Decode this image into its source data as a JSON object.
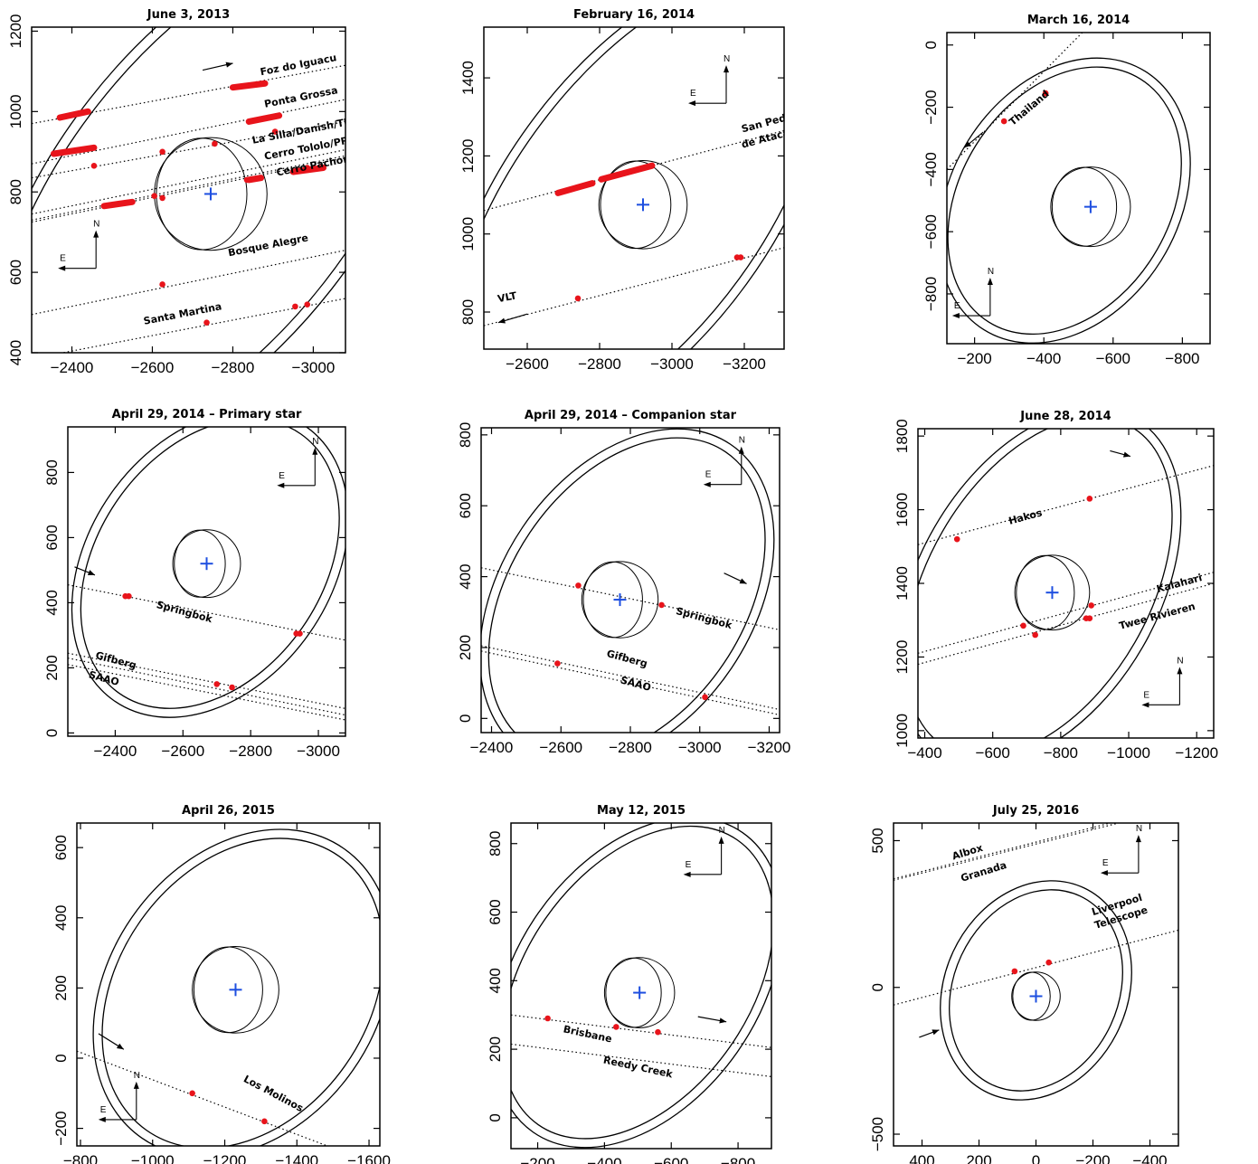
{
  "figure": {
    "colors": {
      "axis": "#000000",
      "chord": "#000000",
      "detection": "#e8141b",
      "center": "#1e4fe0"
    },
    "compass": {
      "north": "N",
      "east": "E"
    }
  },
  "chart_data": [
    {
      "type": "scatter",
      "title": "June 3, 2013",
      "xlim": [
        -2300,
        -3080
      ],
      "ylim": [
        400,
        1210
      ],
      "xticks": [
        -2400,
        -2600,
        -2800,
        -3000
      ],
      "yticks": [
        400,
        600,
        800,
        1000,
        1200
      ],
      "center": {
        "x": -2745,
        "y": 795
      },
      "rings": {
        "cx": -2745,
        "cy": 795,
        "rx": 370,
        "ry": 750,
        "angle": 38,
        "gap": 11
      },
      "body": {
        "r": 140,
        "crescent_dx": 50
      },
      "chords": [
        {
          "name": "Foz do Iguacu",
          "label_at": [
            -2870,
            1090
          ],
          "label_angle": -11,
          "x1": -2300,
          "y1": 970,
          "x2": -3080,
          "y2": 1115
        },
        {
          "name": "Ponta Grossa",
          "label_at": [
            -2880,
            1010
          ],
          "label_angle": -11,
          "x1": -2300,
          "y1": 870,
          "x2": -3080,
          "y2": 1030
        },
        {
          "name": "La Silla/Danish/TRAPPIST",
          "label_at": [
            -2850,
            920
          ],
          "label_angle": -11,
          "x1": -2300,
          "y1": 835,
          "x2": -3080,
          "y2": 975
        },
        {
          "name": "Cerro Tololo/PROMPT",
          "label_at": [
            -2880,
            880
          ],
          "label_angle": -11,
          "x1": -2300,
          "y1": 745,
          "x2": -3080,
          "y2": 905
        },
        {
          "name": "Cerro Pachon / SOAR",
          "label_at": [
            -2910,
            840
          ],
          "label_angle": -11,
          "x1": -2300,
          "y1": 730,
          "x2": -3080,
          "y2": 890
        },
        {
          "name": "",
          "x1": -2300,
          "y1": 725,
          "x2": -3080,
          "y2": 885
        },
        {
          "name": "Bosque Alegre",
          "label_at": [
            -2790,
            640
          ],
          "label_angle": -11,
          "x1": -2300,
          "y1": 495,
          "x2": -3080,
          "y2": 655
        },
        {
          "name": "Santa Martina",
          "label_at": [
            -2580,
            470
          ],
          "label_angle": -11,
          "x1": -2300,
          "y1": 385,
          "x2": -3080,
          "y2": 535
        }
      ],
      "segments": [
        [
          -2370,
          985,
          -2440,
          1000
        ],
        [
          -2355,
          895,
          -2455,
          910
        ],
        [
          -2480,
          765,
          -2550,
          775
        ],
        [
          -2800,
          1060,
          -2880,
          1070
        ],
        [
          -2840,
          975,
          -2915,
          990
        ],
        [
          -2840,
          830,
          -2870,
          835
        ],
        [
          -2950,
          850,
          -3025,
          860
        ]
      ],
      "points": [
        [
          -2455,
          865
        ],
        [
          -2625,
          900
        ],
        [
          -2755,
          920
        ],
        [
          -2605,
          790
        ],
        [
          -2625,
          785
        ],
        [
          -2835,
          830
        ],
        [
          -2905,
          950
        ],
        [
          -2625,
          570
        ],
        [
          -2735,
          475
        ],
        [
          -2955,
          515
        ],
        [
          -2985,
          520
        ],
        [
          -2985,
          860
        ]
      ],
      "compass_at": [
        -2460,
        610
      ],
      "motion": {
        "x1": -2800,
        "y1": 1120,
        "x2": -2725,
        "y2": 1103
      }
    },
    {
      "type": "scatter",
      "title": "February 16, 2014",
      "xlim": [
        -2480,
        -3310
      ],
      "ylim": [
        705,
        1530
      ],
      "xticks": [
        -2600,
        -2800,
        -3000,
        -3200
      ],
      "yticks": [
        800,
        1000,
        1200,
        1400
      ],
      "center": {
        "x": -2920,
        "y": 1075
      },
      "rings": {
        "cx": -2905,
        "cy": 1075,
        "rx": 360,
        "ry": 685,
        "angle": 36,
        "gap": 10
      },
      "body": {
        "r": 122,
        "crescent_dx": 45
      },
      "chords": [
        {
          "name": "San Pedro",
          "label_at": [
            -3195,
            1260
          ],
          "label_angle": -15,
          "x1": -2480,
          "y1": 1060,
          "x2": -3310,
          "y2": 1265
        },
        {
          "name": "de Atacama",
          "label_at": [
            -3195,
            1220
          ],
          "label_angle": -15,
          "x1": 0,
          "y1": 0,
          "x2": 0,
          "y2": 0
        },
        {
          "name": "VLT",
          "label_at": [
            -2520,
            825
          ],
          "label_angle": -11,
          "x1": -2480,
          "y1": 765,
          "x2": -3310,
          "y2": 965
        }
      ],
      "segments": [
        [
          -2685,
          1105,
          -2780,
          1130
        ],
        [
          -2805,
          1140,
          -2945,
          1175
        ]
      ],
      "points": [
        [
          -2740,
          835
        ],
        [
          -3190,
          940
        ],
        [
          -3180,
          940
        ]
      ],
      "compass_at": [
        -3150,
        1335
      ],
      "motion": {
        "x1": -2520,
        "y1": 773,
        "x2": -2600,
        "y2": 795
      }
    },
    {
      "type": "scatter",
      "title": "March 16, 2014",
      "xlim": [
        -120,
        -880
      ],
      "ylim": [
        -960,
        40
      ],
      "xticks": [
        -200,
        -400,
        -600,
        -800
      ],
      "yticks": [
        0,
        -200,
        -400,
        -600,
        -800
      ],
      "center": {
        "x": -535,
        "y": -520
      },
      "rings": {
        "cx": -460,
        "cy": -500,
        "rx": 315,
        "ry": 475,
        "angle": 32,
        "gap": 10
      },
      "body": {
        "r": 115,
        "crescent_dx": 40
      },
      "chords": [
        {
          "name": "Thailand",
          "label_at": [
            -310,
            -260
          ],
          "label_angle": -40,
          "x1": -120,
          "y1": -400,
          "x2": -520,
          "y2": 50
        }
      ],
      "segments": [],
      "points": [
        [
          -285,
          -245
        ],
        [
          -405,
          -155
        ]
      ],
      "compass_at": [
        -245,
        -870
      ],
      "motion": {
        "x1": -170,
        "y1": -330,
        "x2": -225,
        "y2": -280
      }
    },
    {
      "type": "scatter",
      "title": "April 29, 2014 – Primary star",
      "xlim": [
        -2260,
        -3080
      ],
      "ylim": [
        -10,
        940
      ],
      "xticks": [
        -2400,
        -2600,
        -2800,
        -3000
      ],
      "yticks": [
        0,
        200,
        400,
        600,
        800
      ],
      "center": {
        "x": -2670,
        "y": 520
      },
      "rings": {
        "cx": -2680,
        "cy": 520,
        "rx": 345,
        "ry": 500,
        "angle": 35,
        "gap": 10
      },
      "body": {
        "r": 100,
        "crescent_dx": 45
      },
      "chords": [
        {
          "name": "Springbok",
          "label_at": [
            -2520,
            385
          ],
          "label_angle": 15,
          "x1": -2260,
          "y1": 455,
          "x2": -3080,
          "y2": 285
        },
        {
          "name": "Gifberg",
          "label_at": [
            -2340,
            230
          ],
          "label_angle": 15,
          "x1": -2260,
          "y1": 245,
          "x2": -3080,
          "y2": 75
        },
        {
          "name": "SAAO",
          "label_at": [
            -2320,
            170
          ],
          "label_angle": 15,
          "x1": -2260,
          "y1": 230,
          "x2": -3080,
          "y2": 55
        },
        {
          "name": "",
          "x1": -2260,
          "y1": 210,
          "x2": -3080,
          "y2": 40
        }
      ],
      "segments": [],
      "points": [
        [
          -2440,
          420
        ],
        [
          -2430,
          420
        ],
        [
          -2945,
          305
        ],
        [
          -2935,
          305
        ],
        [
          -2700,
          150
        ],
        [
          -2745,
          140
        ]
      ],
      "compass_at": [
        -2990,
        760
      ],
      "motion": {
        "x1": -2340,
        "y1": 485,
        "x2": -2280,
        "y2": 510
      }
    },
    {
      "type": "scatter",
      "title": "April 29, 2014 – Companion star",
      "xlim": [
        -2370,
        -3230
      ],
      "ylim": [
        -40,
        820
      ],
      "xticks": [
        -2400,
        -2600,
        -2800,
        -3000,
        -3200
      ],
      "yticks": [
        0,
        200,
        400,
        600,
        800
      ],
      "center": {
        "x": -2770,
        "y": 335
      },
      "rings": {
        "cx": -2790,
        "cy": 340,
        "rx": 350,
        "ry": 510,
        "angle": 34,
        "gap": 10
      },
      "body": {
        "r": 110,
        "crescent_dx": 45
      },
      "chords": [
        {
          "name": "Springbok",
          "label_at": [
            -2930,
            295
          ],
          "label_angle": 15,
          "x1": -2370,
          "y1": 425,
          "x2": -3230,
          "y2": 250
        },
        {
          "name": "Gifberg",
          "label_at": [
            -2730,
            175
          ],
          "label_angle": 15,
          "x1": -2370,
          "y1": 205,
          "x2": -3230,
          "y2": 25
        },
        {
          "name": "SAAO",
          "label_at": [
            -2770,
            100
          ],
          "label_angle": 15,
          "x1": -2370,
          "y1": 190,
          "x2": -3230,
          "y2": 10
        }
      ],
      "segments": [],
      "points": [
        [
          -2650,
          375
        ],
        [
          -2890,
          320
        ],
        [
          -2590,
          155
        ],
        [
          -3015,
          60
        ]
      ],
      "compass_at": [
        -3120,
        660
      ],
      "motion": {
        "x1": -3135,
        "y1": 380,
        "x2": -3070,
        "y2": 410
      }
    },
    {
      "type": "scatter",
      "title": "June 28, 2014",
      "xlim": [
        -380,
        -1250
      ],
      "ylim": [
        980,
        1820
      ],
      "xticks": [
        -400,
        -600,
        -800,
        -1000,
        -1200
      ],
      "yticks": [
        1000,
        1200,
        1400,
        1600,
        1800
      ],
      "center": {
        "x": -775,
        "y": 1375
      },
      "rings": {
        "cx": -735,
        "cy": 1390,
        "rx": 340,
        "ry": 515,
        "angle": 30,
        "gap": 10
      },
      "body": {
        "r": 110,
        "crescent_dx": 45
      },
      "chords": [
        {
          "name": "Hakos",
          "label_at": [
            -650,
            1560
          ],
          "label_angle": -15,
          "x1": -380,
          "y1": 1505,
          "x2": -1250,
          "y2": 1720
        },
        {
          "name": "Kalahari",
          "label_at": [
            -1085,
            1375
          ],
          "label_angle": -15,
          "x1": -380,
          "y1": 1210,
          "x2": -1250,
          "y2": 1430
        },
        {
          "name": "Twee  Rivieren",
          "label_at": [
            -975,
            1275
          ],
          "label_angle": -15,
          "x1": -380,
          "y1": 1180,
          "x2": -1250,
          "y2": 1400
        }
      ],
      "segments": [],
      "points": [
        [
          -495,
          1520
        ],
        [
          -885,
          1630
        ],
        [
          -690,
          1285
        ],
        [
          -725,
          1260
        ],
        [
          -890,
          1340
        ],
        [
          -875,
          1305
        ],
        [
          -885,
          1305
        ]
      ],
      "compass_at": [
        -1150,
        1070
      ],
      "motion": {
        "x1": -1005,
        "y1": 1745,
        "x2": -945,
        "y2": 1760
      }
    },
    {
      "type": "scatter",
      "title": "April 26, 2015",
      "xlim": [
        -790,
        -1630
      ],
      "ylim": [
        -250,
        670
      ],
      "xticks": [
        -800,
        -1000,
        -1200,
        -1400,
        -1600
      ],
      "yticks": [
        -200,
        0,
        200,
        400,
        600
      ],
      "center": {
        "x": -1230,
        "y": 195
      },
      "rings": {
        "cx": -1250,
        "cy": 185,
        "rx": 360,
        "ry": 490,
        "angle": 35,
        "gap": 10
      },
      "body": {
        "r": 120,
        "crescent_dx": 45
      },
      "chords": [
        {
          "name": "Los Molinos",
          "label_at": [
            -1250,
            -65
          ],
          "label_angle": 28,
          "x1": -790,
          "y1": 20,
          "x2": -1510,
          "y2": -260
        }
      ],
      "segments": [],
      "points": [
        [
          -1110,
          -100
        ],
        [
          -1310,
          -180
        ]
      ],
      "compass_at": [
        -955,
        -175
      ],
      "motion": {
        "x1": -920,
        "y1": 25,
        "x2": -850,
        "y2": 70
      }
    },
    {
      "type": "scatter",
      "title": "May 12, 2015",
      "xlim": [
        -120,
        -900
      ],
      "ylim": [
        -90,
        860
      ],
      "xticks": [
        -200,
        -400,
        -600,
        -800
      ],
      "yticks": [
        0,
        200,
        400,
        600,
        800
      ],
      "center": {
        "x": -505,
        "y": 365
      },
      "rings": {
        "cx": -500,
        "cy": 395,
        "rx": 350,
        "ry": 520,
        "angle": 35,
        "gap": 10
      },
      "body": {
        "r": 105,
        "crescent_dx": 40
      },
      "chords": [
        {
          "name": "Brisbane",
          "label_at": [
            -275,
            250
          ],
          "label_angle": 12,
          "x1": -120,
          "y1": 300,
          "x2": -900,
          "y2": 205
        },
        {
          "name": "Reedy Creek",
          "label_at": [
            -395,
            160
          ],
          "label_angle": 12,
          "x1": -120,
          "y1": 215,
          "x2": -900,
          "y2": 120
        }
      ],
      "segments": [],
      "points": [
        [
          -230,
          290
        ],
        [
          -435,
          265
        ],
        [
          -560,
          250
        ]
      ],
      "compass_at": [
        -750,
        710
      ],
      "motion": {
        "x1": -765,
        "y1": 280,
        "x2": -680,
        "y2": 295
      }
    },
    {
      "type": "scatter",
      "title": "July 25, 2016",
      "xlim": [
        500,
        -500
      ],
      "ylim": [
        -540,
        560
      ],
      "xticks": [
        400,
        200,
        0,
        -200,
        -400
      ],
      "yticks": [
        500,
        0,
        -500
      ],
      "center": {
        "x": 0,
        "y": -30
      },
      "rings": {
        "cx": 0,
        "cy": -10,
        "rx": 305,
        "ry": 370,
        "angle": 25,
        "gap": 10
      },
      "body": {
        "r": 85,
        "crescent_dx": 35
      },
      "chords": [
        {
          "name": "Albox",
          "label_at": [
            290,
            435
          ],
          "label_angle": -17,
          "x1": 500,
          "y1": 370,
          "x2": -500,
          "y2": 620
        },
        {
          "name": "Granada",
          "label_at": [
            260,
            360
          ],
          "label_angle": -17,
          "x1": 500,
          "y1": 365,
          "x2": -500,
          "y2": 612
        },
        {
          "name": "Liverpool",
          "label_at": [
            -200,
            245
          ],
          "label_angle": -17,
          "x1": 500,
          "y1": -60,
          "x2": -500,
          "y2": 195
        },
        {
          "name": "Telescope",
          "label_at": [
            -210,
            200
          ],
          "label_angle": -17,
          "x1": 0,
          "y1": 0,
          "x2": 0,
          "y2": 0
        }
      ],
      "segments": [],
      "points": [
        [
          75,
          55
        ],
        [
          -45,
          85
        ]
      ],
      "compass_at": [
        -360,
        390
      ],
      "motion": {
        "x1": 340,
        "y1": -145,
        "x2": 410,
        "y2": -170
      }
    }
  ]
}
